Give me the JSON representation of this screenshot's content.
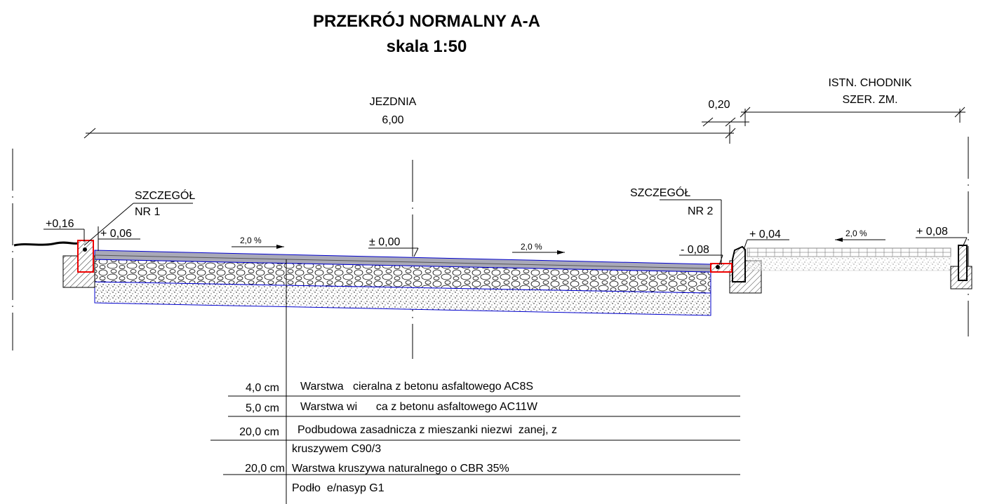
{
  "header": {
    "title": "PRZEKRÓJ NORMALNY A-A",
    "subtitle": "skala 1:50"
  },
  "dimensions": {
    "roadway": {
      "label": "JEZDNIA",
      "width": "6,00"
    },
    "gap": "0,20",
    "sidewalk": {
      "label": "ISTN. CHODNIK",
      "width": "SZER. ZM."
    }
  },
  "details": [
    {
      "label": "SZCZEGÓŁ",
      "number": "NR 1"
    },
    {
      "label": "SZCZEGÓŁ",
      "number": "NR 2"
    }
  ],
  "levels": [
    "+0,16",
    "+ 0,06",
    "± 0,00",
    "- 0,08",
    "+ 0,04",
    "+ 0,08"
  ],
  "slopes": [
    "2,0 %",
    "2,0 %",
    "2,0 %"
  ],
  "layers": [
    {
      "thickness": "4,0 cm",
      "description": [
        "Warstwa   cieralna z betonu asfaltowego AC8S"
      ]
    },
    {
      "thickness": "5,0 cm",
      "description": [
        "Warstwa wi      ca z betonu asfaltowego AC11W"
      ]
    },
    {
      "thickness": "20,0 cm",
      "description": [
        "Podbudowa zasadnicza z mieszanki niezwi  zanej, z",
        "kruszywem C90/3"
      ]
    },
    {
      "thickness": "20,0 cm",
      "description": [
        "Warstwa kruszywa naturalnego o CBR 35%"
      ]
    },
    {
      "description": [
        "Podło  e/nasyp G1"
      ]
    }
  ]
}
